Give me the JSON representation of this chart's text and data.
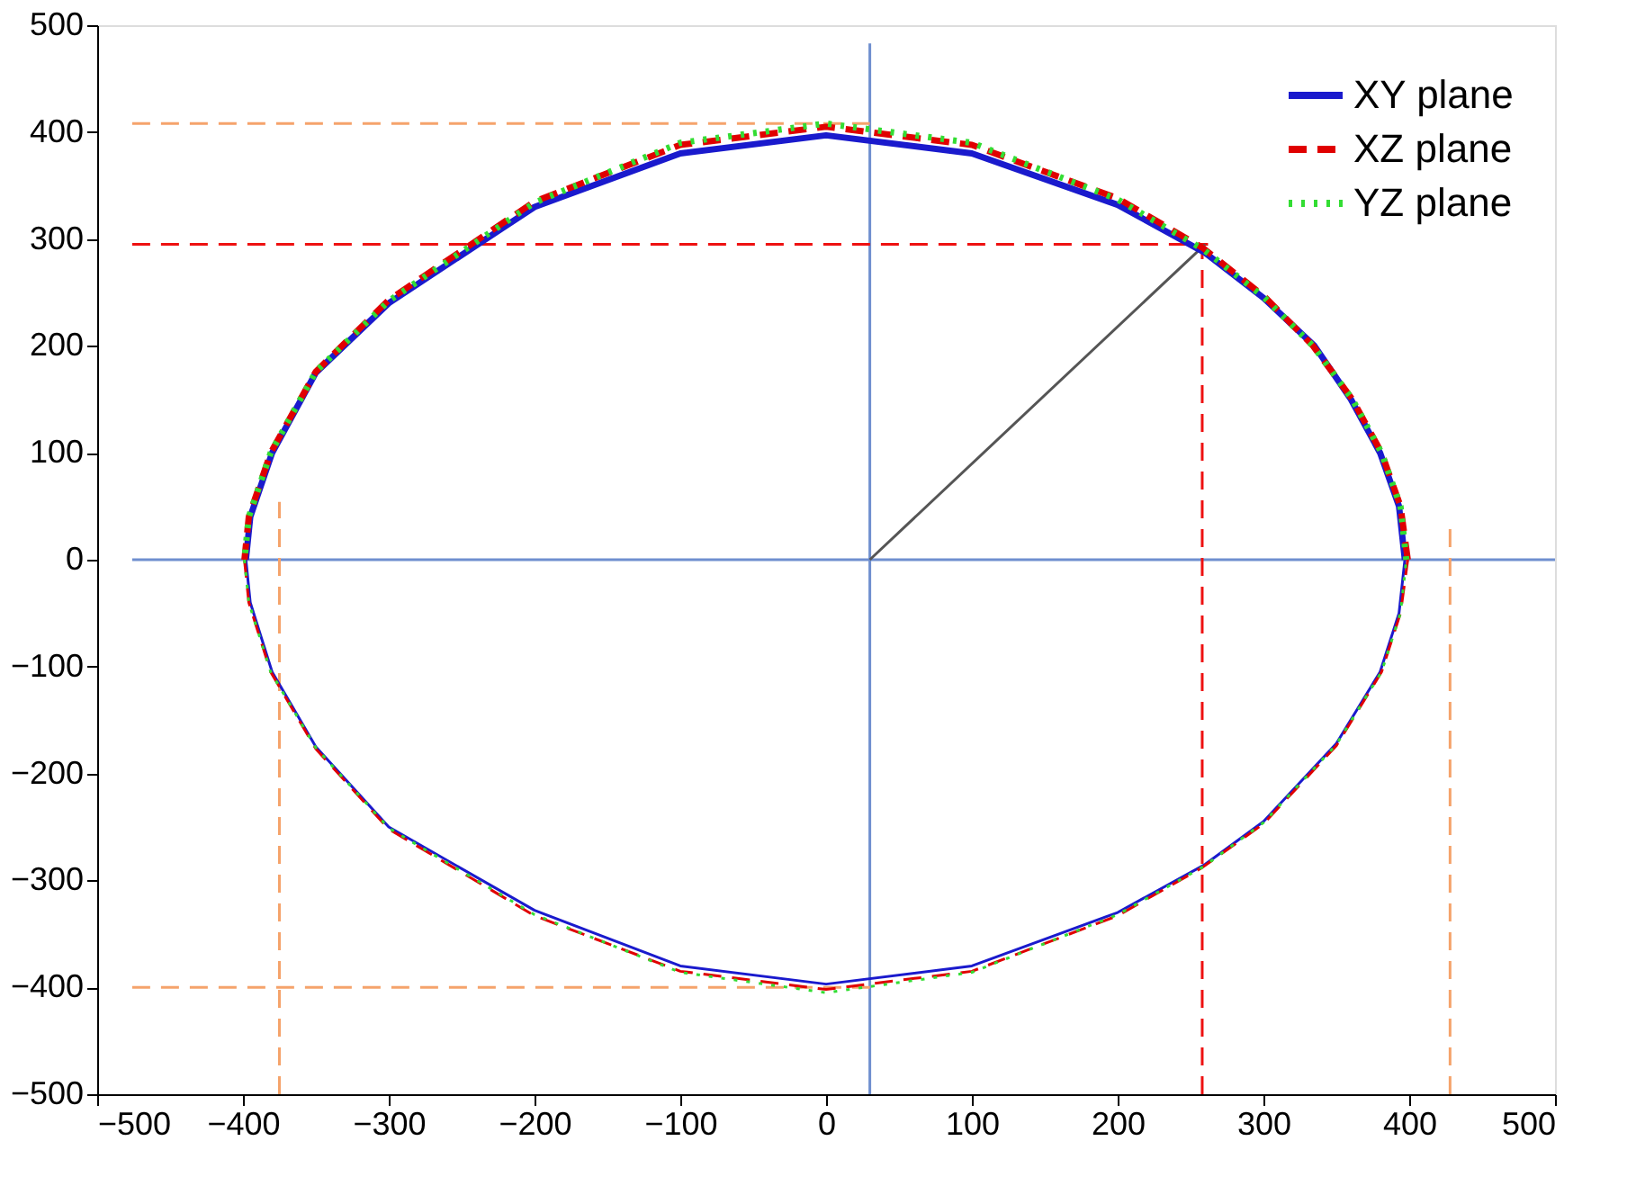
{
  "chart_data": {
    "type": "line",
    "xlim": [
      -500,
      500
    ],
    "ylim": [
      -500,
      500
    ],
    "xticks": [
      -500,
      -400,
      -300,
      -200,
      -100,
      0,
      100,
      200,
      300,
      400,
      500
    ],
    "yticks": [
      -500,
      -400,
      -300,
      -200,
      -100,
      0,
      100,
      200,
      300,
      400,
      500
    ],
    "grid": false,
    "legend": "top right",
    "series": [
      {
        "color": "#6f8fcf",
        "line_style": "solid",
        "x": [
          -476,
          500
        ],
        "values": [
          0,
          0
        ]
      },
      {
        "color": "#6f8fcf",
        "line_style": "solid",
        "x": [
          30,
          30
        ],
        "values": [
          -500,
          483
        ]
      },
      {
        "color": "#f5a36b",
        "line_style": "dashed",
        "x": [
          -476,
          30
        ],
        "values": [
          408,
          408
        ]
      },
      {
        "color": "#f5a36b",
        "line_style": "dashed",
        "x": [
          -476,
          30
        ],
        "values": [
          -400,
          -400
        ]
      },
      {
        "color": "#f5a36b",
        "line_style": "dashed",
        "x": [
          -375,
          -375
        ],
        "values": [
          -500,
          54
        ]
      },
      {
        "color": "#f5a36b",
        "line_style": "dashed",
        "x": [
          428,
          428
        ],
        "values": [
          -500,
          35
        ]
      },
      {
        "color": "#ee1111",
        "line_style": "dashed",
        "x": [
          -476,
          262
        ],
        "values": [
          295,
          295
        ]
      },
      {
        "color": "#ee1111",
        "line_style": "dashed",
        "x": [
          258,
          258
        ],
        "values": [
          -500,
          295
        ]
      },
      {
        "color": "#555555",
        "line_style": "solid",
        "x": [
          30,
          260
        ],
        "values": [
          0,
          295
        ]
      },
      {
        "name": "XY plane",
        "color": "#1a1acd",
        "line_style": "solid",
        "x": [
          397,
          393,
          380,
          360,
          335,
          300,
          260,
          200,
          100,
          0,
          -100,
          -200,
          -300,
          -350,
          -380,
          -395,
          -398
        ],
        "values": [
          0,
          50,
          100,
          150,
          200,
          245,
          287,
          332,
          380,
          397,
          380,
          330,
          240,
          175,
          100,
          40,
          0
        ]
      },
      {
        "color": "#1a1acd",
        "line_style": "solid",
        "x": [
          -398,
          -395,
          -380,
          -350,
          -300,
          -200,
          -100,
          0,
          100,
          200,
          260,
          300,
          350,
          380,
          393,
          397
        ],
        "values": [
          0,
          -40,
          -105,
          -175,
          -250,
          -328,
          -380,
          -397,
          -380,
          -330,
          -285,
          -245,
          -172,
          -105,
          -50,
          0
        ]
      },
      {
        "name": "XZ plane",
        "color": "#e00000",
        "line_style": "dashed",
        "x": [
          399,
          394,
          381,
          361,
          334,
          300,
          258,
          200,
          100,
          0,
          -100,
          -200,
          -300,
          -350,
          -381,
          -396,
          -399
        ],
        "values": [
          0,
          50,
          100,
          150,
          200,
          247,
          292,
          338,
          388,
          405,
          388,
          335,
          243,
          176,
          100,
          40,
          0
        ]
      },
      {
        "color": "#e00000",
        "line_style": "dashed",
        "x": [
          -399,
          -396,
          -381,
          -350,
          -300,
          -200,
          -100,
          0,
          100,
          200,
          258,
          300,
          350,
          381,
          394,
          399
        ],
        "values": [
          0,
          -40,
          -105,
          -177,
          -252,
          -333,
          -385,
          -402,
          -385,
          -333,
          -288,
          -247,
          -174,
          -105,
          -50,
          0
        ]
      },
      {
        "name": "YZ plane",
        "color": "#33dd33",
        "line_style": "dotted",
        "x": [
          398,
          394,
          381,
          361,
          334,
          300,
          259,
          200,
          100,
          0,
          -100,
          -200,
          -300,
          -350,
          -381,
          -396,
          -399
        ],
        "values": [
          0,
          50,
          100,
          150,
          200,
          246,
          290,
          337,
          390,
          408,
          390,
          334,
          242,
          176,
          100,
          40,
          0
        ]
      },
      {
        "color": "#33dd33",
        "line_style": "dotted",
        "x": [
          -399,
          -396,
          -381,
          -350,
          -300,
          -200,
          -100,
          0,
          100,
          200,
          259,
          300,
          350,
          381,
          394,
          398
        ],
        "values": [
          0,
          -40,
          -105,
          -176,
          -251,
          -332,
          -386,
          -405,
          -386,
          -332,
          -287,
          -246,
          -173,
          -105,
          -50,
          0
        ]
      }
    ]
  }
}
